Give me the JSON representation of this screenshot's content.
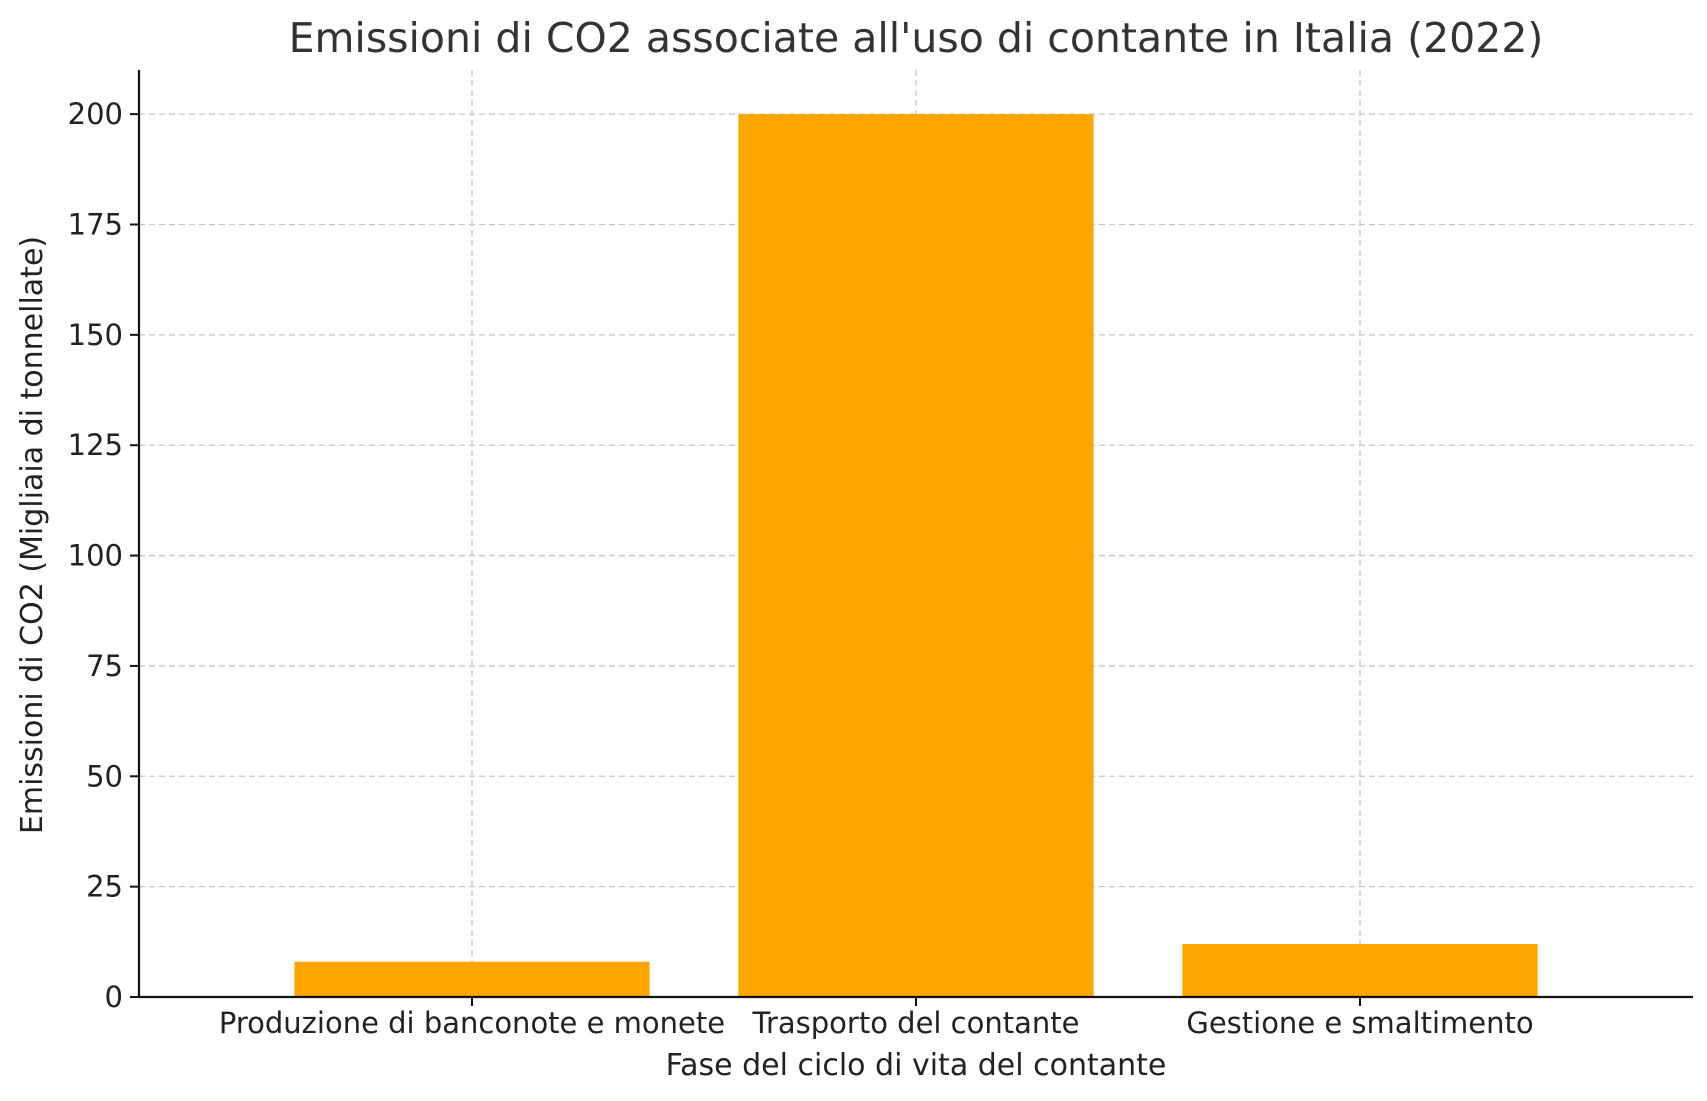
{
  "chart_data": {
    "type": "bar",
    "title": "Emissioni di CO2 associate all'uso di contante in Italia (2022)",
    "xlabel": "Fase del ciclo di vita del contante",
    "ylabel": "Emissioni di CO2 (Migliaia di tonnellate)",
    "categories": [
      "Produzione di banconote e monete",
      "Trasporto del contante",
      "Gestione e smaltimento"
    ],
    "values": [
      8,
      200,
      12
    ],
    "ylim": [
      0,
      210
    ],
    "yticks": [
      0,
      25,
      50,
      75,
      100,
      125,
      150,
      175,
      200
    ],
    "grid": true,
    "bar_color": "#ffa500"
  }
}
